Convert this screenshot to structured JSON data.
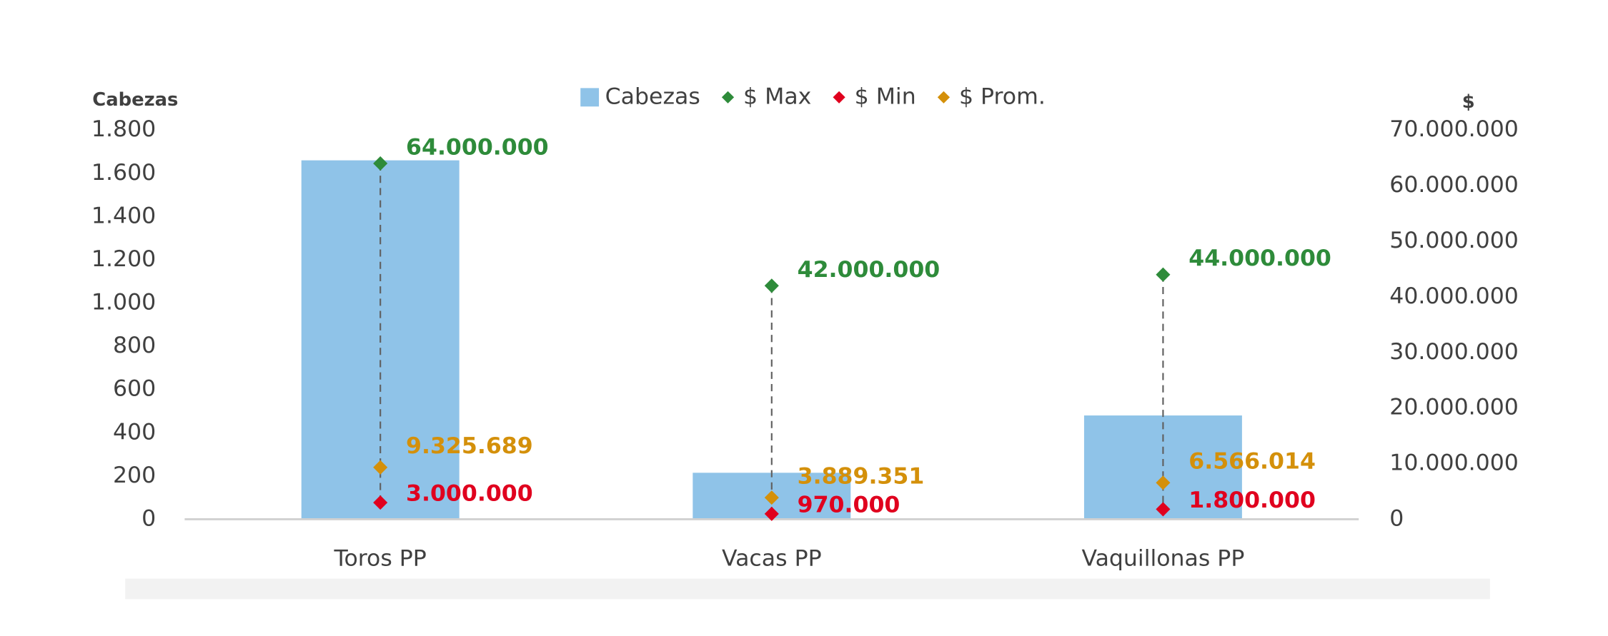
{
  "chart_data": {
    "type": "bar",
    "categories": [
      "Toros PP",
      "Vacas PP",
      "Vaquillonas PP"
    ],
    "y_label": "Cabezas",
    "y2_label": "$",
    "ylim": [
      0,
      1800
    ],
    "yticks": [
      0,
      200,
      400,
      600,
      800,
      {
        "value": 1000,
        "label": "1.000"
      },
      {
        "value": 1200,
        "label": "1.200"
      },
      {
        "value": 1400,
        "label": "1.400"
      },
      {
        "value": 1600,
        "label": "1.600"
      },
      {
        "value": 1800,
        "label": "1.800"
      }
    ],
    "y2lim": [
      0,
      70000000
    ],
    "y2ticks": [
      0,
      {
        "value": 10000000,
        "label": "10.000.000"
      },
      {
        "value": 20000000,
        "label": "20.000.000"
      },
      {
        "value": 30000000,
        "label": "30.000.000"
      },
      {
        "value": 40000000,
        "label": "40.000.000"
      },
      {
        "value": 50000000,
        "label": "50.000.000"
      },
      {
        "value": 60000000,
        "label": "60.000.000"
      },
      {
        "value": 70000000,
        "label": "70.000.000"
      }
    ],
    "legend": "top",
    "series": [
      {
        "name": "Cabezas",
        "type": "bar",
        "color": "#8fc3e8",
        "values": [
          1660,
          215,
          480
        ]
      },
      {
        "name": "$ Max",
        "type": "scatter",
        "axis": "y2",
        "color": "#2e8b3a",
        "values": [
          64000000,
          42000000,
          44000000
        ],
        "value_labels": [
          "64.000.000",
          "42.000.000",
          "44.000.000"
        ]
      },
      {
        "name": "$ Min",
        "type": "scatter",
        "axis": "y2",
        "color": "#e0001e",
        "values": [
          3000000,
          970000,
          1800000
        ],
        "value_labels": [
          "3.000.000",
          "970.000",
          "1.800.000"
        ]
      },
      {
        "name": "$ Prom.",
        "type": "scatter",
        "axis": "y2",
        "color": "#d4900a",
        "values": [
          9325689,
          3889351,
          6566014
        ],
        "value_labels": [
          "9.325.689",
          "3.889.351",
          "6.566.014"
        ]
      }
    ]
  }
}
